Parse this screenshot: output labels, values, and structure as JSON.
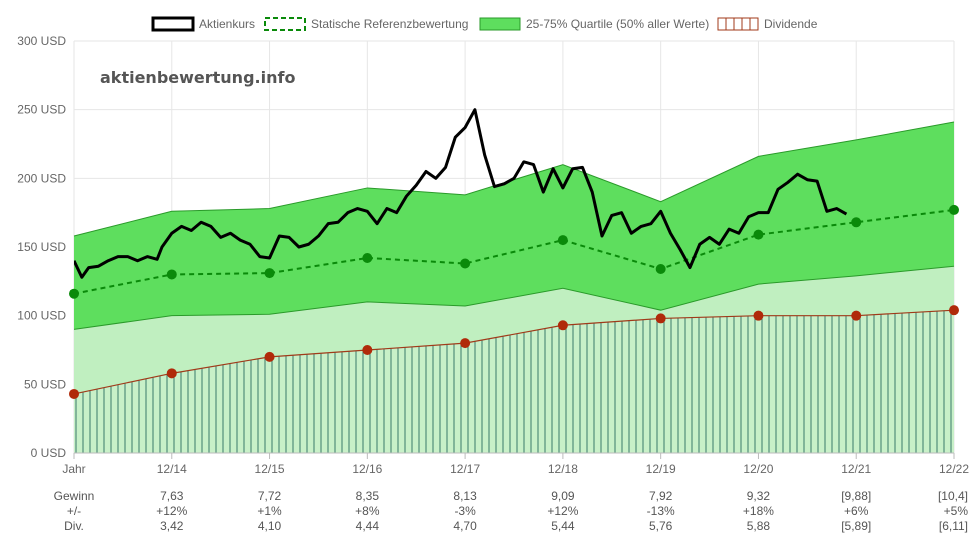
{
  "watermark": "aktienbewertung.info",
  "colors": {
    "price": "#000000",
    "reference": "#0a8a0a",
    "quartile_fill": "#5ede5e",
    "quartile_edge": "#2a9a2a",
    "lower_band_fill": "#c0efc0",
    "dividend_hatch": "#3a7a6a",
    "dividend_line": "#a03a1a",
    "dividend_point": "#b02a0a",
    "grid": "#e6e6e6"
  },
  "legend": [
    {
      "label": "Aktienkurs",
      "icon": "line-solid-icon"
    },
    {
      "label": "Statische Referenzbewertung",
      "icon": "line-dashed-icon"
    },
    {
      "label": "25-75% Quartile (50% aller Werte)",
      "icon": "filled-box-icon"
    },
    {
      "label": "Dividende",
      "icon": "hatched-box-icon"
    }
  ],
  "chart_data": {
    "type": "line",
    "x_labels": [
      "Jahr",
      "12/14",
      "12/15",
      "12/16",
      "12/17",
      "12/18",
      "12/19",
      "12/20",
      "12/21",
      "12/22"
    ],
    "y_ticks": [
      "0 USD",
      "50 USD",
      "100 USD",
      "150 USD",
      "200 USD",
      "250 USD",
      "300 USD"
    ],
    "ylim": [
      0,
      300
    ],
    "grid": true,
    "legend_position": "top",
    "series": [
      {
        "name": "Aktienkurs",
        "x": [
          0,
          0.08,
          0.15,
          0.25,
          0.35,
          0.45,
          0.55,
          0.65,
          0.75,
          0.85,
          0.9,
          1.0,
          1.1,
          1.2,
          1.3,
          1.4,
          1.5,
          1.6,
          1.7,
          1.8,
          1.9,
          2.0,
          2.1,
          2.2,
          2.3,
          2.4,
          2.5,
          2.6,
          2.7,
          2.8,
          2.9,
          3.0,
          3.1,
          3.2,
          3.3,
          3.4,
          3.5,
          3.6,
          3.7,
          3.8,
          3.9,
          4.0,
          4.1,
          4.2,
          4.3,
          4.4,
          4.5,
          4.6,
          4.7,
          4.8,
          4.9,
          5.0,
          5.1,
          5.2,
          5.3,
          5.4,
          5.5,
          5.6,
          5.7,
          5.8,
          5.9,
          6.0,
          6.1,
          6.2,
          6.3,
          6.4,
          6.5,
          6.6,
          6.7,
          6.8,
          6.9,
          7.0,
          7.1,
          7.2,
          7.3,
          7.4,
          7.5,
          7.6,
          7.7,
          7.8,
          7.9
        ],
        "values": [
          140,
          128,
          135,
          136,
          140,
          143,
          143,
          140,
          143,
          141,
          150,
          160,
          165,
          162,
          168,
          165,
          157,
          160,
          155,
          152,
          143,
          142,
          158,
          157,
          150,
          152,
          158,
          167,
          168,
          175,
          178,
          176,
          167,
          178,
          175,
          187,
          195,
          205,
          200,
          208,
          230,
          237,
          250,
          217,
          194,
          196,
          200,
          212,
          210,
          190,
          207,
          193,
          207,
          208,
          190,
          158,
          173,
          175,
          160,
          165,
          167,
          176,
          160,
          148,
          135,
          152,
          157,
          152,
          163,
          160,
          172,
          175,
          175,
          192,
          197,
          203,
          199,
          198,
          176,
          178,
          174
        ]
      },
      {
        "name": "Statische Referenzbewertung",
        "x": [
          0,
          1,
          2,
          3,
          4,
          5,
          6,
          7,
          8,
          9
        ],
        "values": [
          116,
          130,
          131,
          142,
          138,
          155,
          134,
          159,
          168,
          177
        ]
      },
      {
        "name": "25-75% Quartile (50% aller Werte)",
        "x": [
          0,
          1,
          2,
          3,
          4,
          5,
          6,
          7,
          8,
          9
        ],
        "upper": [
          158,
          176,
          178,
          193,
          188,
          210,
          183,
          216,
          228,
          241
        ],
        "lower": [
          90,
          100,
          101,
          110,
          107,
          120,
          104,
          123,
          129,
          136
        ]
      },
      {
        "name": "Dividende",
        "x": [
          0,
          1,
          2,
          3,
          4,
          5,
          6,
          7,
          8,
          9
        ],
        "values": [
          43,
          58,
          70,
          75,
          80,
          93,
          98,
          100,
          100,
          104
        ]
      }
    ]
  },
  "table": {
    "rows": [
      {
        "label": "Gewinn",
        "values": [
          "7,63",
          "7,72",
          "8,35",
          "8,13",
          "9,09",
          "7,92",
          "9,32",
          "[9,88]",
          "[10,4]"
        ]
      },
      {
        "label": "+/-",
        "values": [
          "+12%",
          "+1%",
          "+8%",
          "-3%",
          "+12%",
          "-13%",
          "+18%",
          "+6%",
          "+5%"
        ]
      },
      {
        "label": "Div.",
        "values": [
          "3,42",
          "4,10",
          "4,44",
          "4,70",
          "5,44",
          "5,76",
          "5,88",
          "[5,89]",
          "[6,11]"
        ]
      }
    ]
  }
}
